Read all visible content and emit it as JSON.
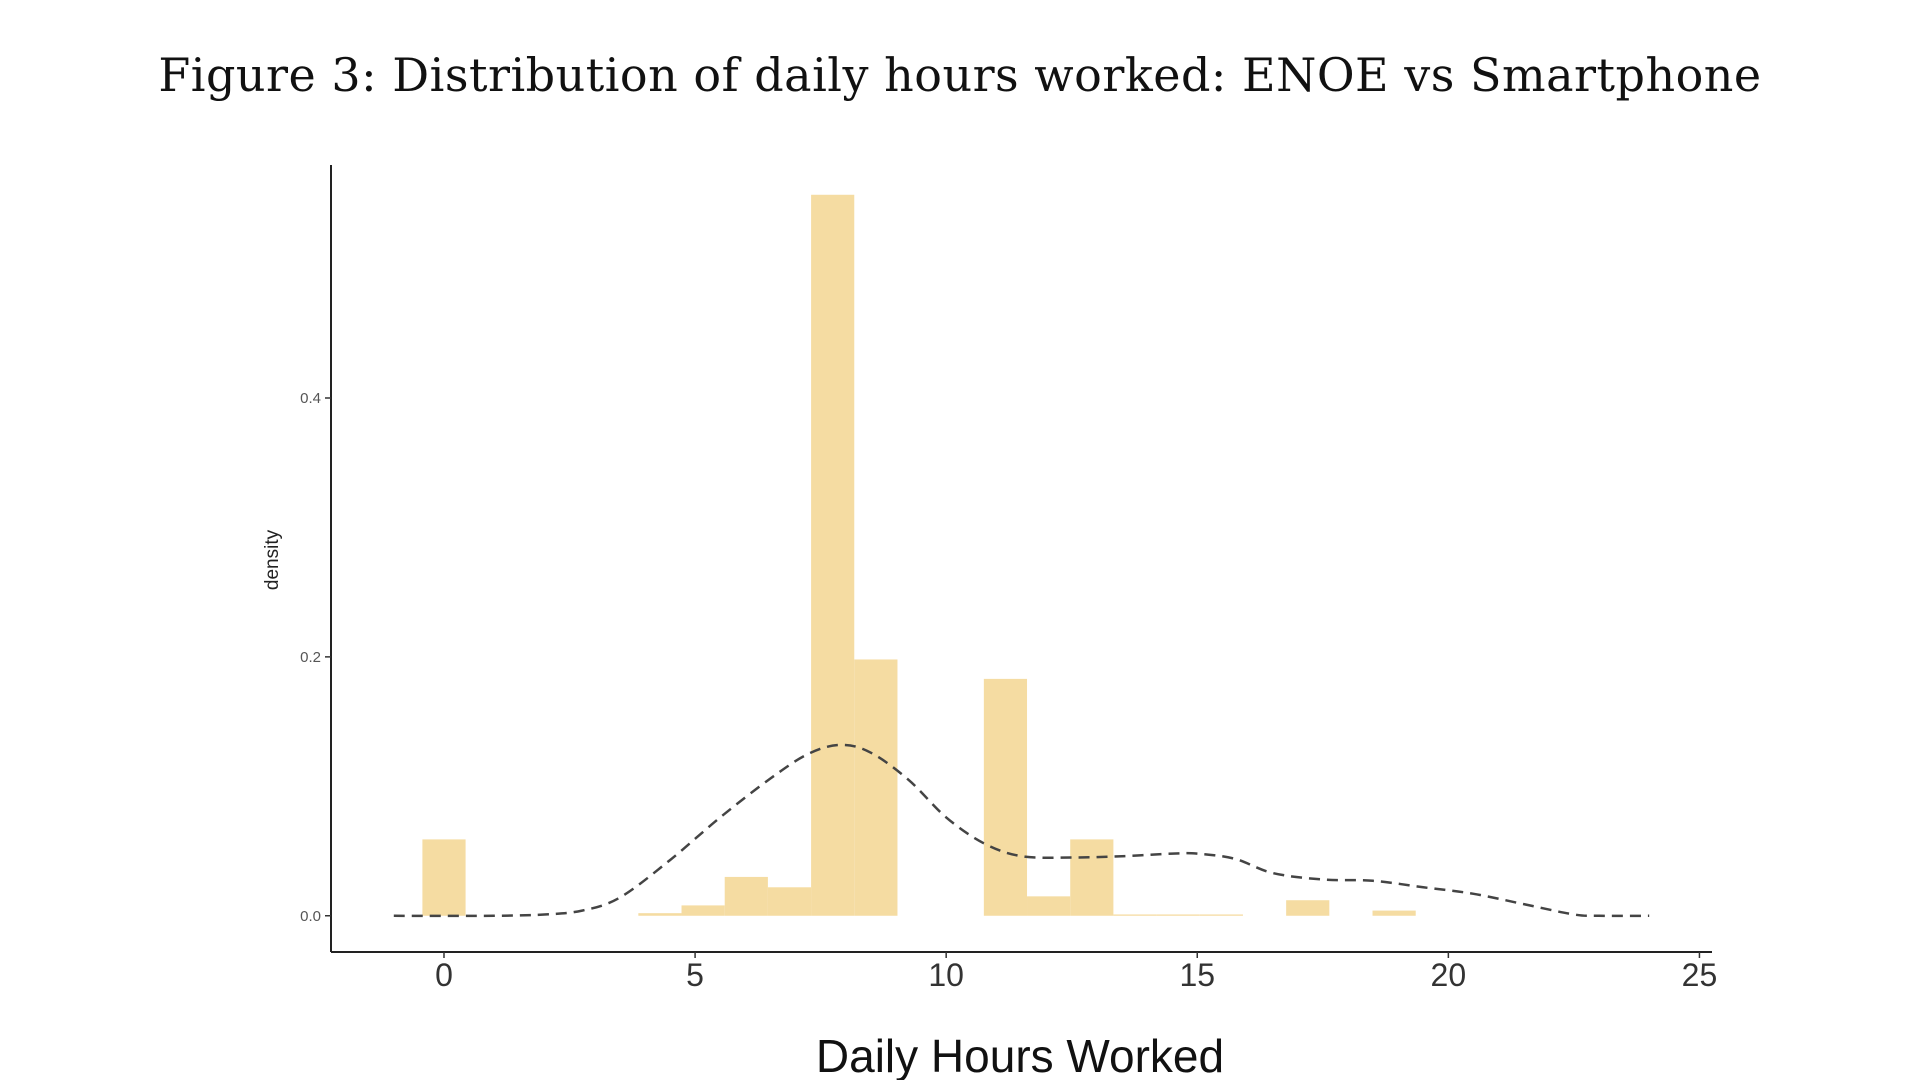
{
  "figure": {
    "title": "Figure 3: Distribution of daily hours worked: ENOE vs Smartphone"
  },
  "chart_data": {
    "type": "bar",
    "title": "Figure 3: Distribution of daily hours worked: ENOE vs Smartphone",
    "xlabel": "Daily Hours Worked",
    "ylabel": "density",
    "xlim": [
      -2.25,
      25.25
    ],
    "ylim": [
      -0.028,
      0.58
    ],
    "x_ticks": [
      0,
      5,
      10,
      15,
      20,
      25
    ],
    "y_ticks": [
      0.0,
      0.2,
      0.4
    ],
    "y_tick_labels": [
      "0.0",
      "0.2",
      "0.4"
    ],
    "bar_width": 0.86,
    "bar_color": "#f5dca2",
    "histogram_bars": [
      {
        "x_start": -0.43,
        "density": 0.059
      },
      {
        "x_start": 3.87,
        "density": 0.002
      },
      {
        "x_start": 4.73,
        "density": 0.008
      },
      {
        "x_start": 5.59,
        "density": 0.03
      },
      {
        "x_start": 6.45,
        "density": 0.022
      },
      {
        "x_start": 7.31,
        "density": 0.557
      },
      {
        "x_start": 8.17,
        "density": 0.198
      },
      {
        "x_start": 10.75,
        "density": 0.183
      },
      {
        "x_start": 11.61,
        "density": 0.015
      },
      {
        "x_start": 12.47,
        "density": 0.059
      },
      {
        "x_start": 13.33,
        "density": 0.001
      },
      {
        "x_start": 14.19,
        "density": 0.001
      },
      {
        "x_start": 15.05,
        "density": 0.001
      },
      {
        "x_start": 16.77,
        "density": 0.012
      },
      {
        "x_start": 18.49,
        "density": 0.004
      }
    ],
    "density_line": {
      "style": "dashed",
      "color": "#444444",
      "x": [
        -1,
        1,
        2,
        2.75,
        3.5,
        4.5,
        5.5,
        6.5,
        7.25,
        7.9,
        8.5,
        9.25,
        10,
        10.75,
        11.5,
        12.5,
        13.5,
        14.5,
        15,
        15.75,
        16.5,
        17.5,
        18.5,
        19.5,
        20.5,
        21.5,
        22.5,
        23,
        24
      ],
      "y": [
        0.0,
        0.0,
        0.001,
        0.004,
        0.014,
        0.043,
        0.076,
        0.106,
        0.125,
        0.132,
        0.126,
        0.105,
        0.076,
        0.056,
        0.046,
        0.045,
        0.046,
        0.048,
        0.048,
        0.044,
        0.033,
        0.028,
        0.027,
        0.022,
        0.017,
        0.009,
        0.001,
        0.0,
        0.0
      ]
    }
  }
}
